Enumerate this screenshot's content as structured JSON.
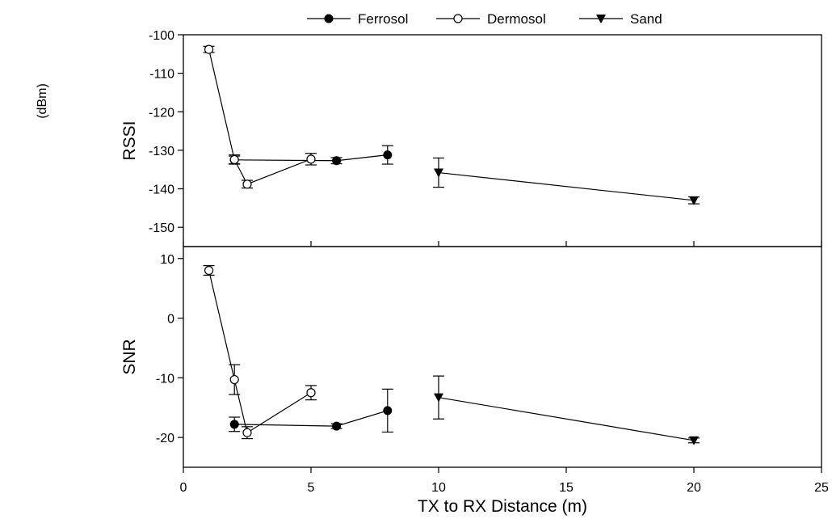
{
  "chart_data": {
    "type": "line",
    "xlabel": "TX to RX Distance (m)",
    "xlim": [
      0,
      25
    ],
    "x_ticks": [
      "0",
      "5",
      "10",
      "15",
      "20",
      "25"
    ],
    "unit_label": "(dBm)",
    "legend": [
      "Ferrosol",
      "Dermosol",
      "Sand"
    ],
    "legend_position": "top-center",
    "series_styles": [
      {
        "name": "Ferrosol",
        "marker": "filled-circle",
        "color": "#000000"
      },
      {
        "name": "Dermosol",
        "marker": "open-circle",
        "color": "#000000"
      },
      {
        "name": "Sand",
        "marker": "filled-triangle-down",
        "color": "#000000"
      }
    ],
    "panels": [
      {
        "ylabel": "RSSI",
        "ylim": [
          -155,
          -100
        ],
        "y_ticks": [
          "-100",
          "-110",
          "-120",
          "-130",
          "-140",
          "-150"
        ],
        "series": [
          {
            "name": "Ferrosol",
            "points": [
              {
                "x": 2,
                "y": -132.5,
                "err": 1.0
              },
              {
                "x": 6,
                "y": -132.7,
                "err": 0.8
              },
              {
                "x": 8,
                "y": -131.2,
                "err": 2.4
              }
            ]
          },
          {
            "name": "Dermosol",
            "points": [
              {
                "x": 1,
                "y": -103.8,
                "err": 0.8
              },
              {
                "x": 2,
                "y": -132.4,
                "err": 1.2
              },
              {
                "x": 2.5,
                "y": -138.8,
                "err": 1.0
              },
              {
                "x": 5,
                "y": -132.3,
                "err": 1.5
              }
            ]
          },
          {
            "name": "Sand",
            "points": [
              {
                "x": 10,
                "y": -135.8,
                "err": 3.8
              },
              {
                "x": 20,
                "y": -143.0,
                "err": 0.9
              }
            ]
          }
        ]
      },
      {
        "ylabel": "SNR",
        "ylim": [
          -25,
          12
        ],
        "y_ticks": [
          "10",
          "0",
          "-10",
          "-20"
        ],
        "series": [
          {
            "name": "Ferrosol",
            "points": [
              {
                "x": 2,
                "y": -17.8,
                "err": 1.2
              },
              {
                "x": 6,
                "y": -18.1,
                "err": 0.4
              },
              {
                "x": 8,
                "y": -15.5,
                "err": 3.6
              }
            ]
          },
          {
            "name": "Dermosol",
            "points": [
              {
                "x": 1,
                "y": 8.0,
                "err": 0.8
              },
              {
                "x": 2,
                "y": -10.3,
                "err": 2.5
              },
              {
                "x": 2.5,
                "y": -19.2,
                "err": 1.0
              },
              {
                "x": 5,
                "y": -12.5,
                "err": 1.2
              }
            ]
          },
          {
            "name": "Sand",
            "points": [
              {
                "x": 10,
                "y": -13.3,
                "err": 3.6
              },
              {
                "x": 20,
                "y": -20.5,
                "err": 0.4
              }
            ]
          }
        ]
      }
    ]
  }
}
